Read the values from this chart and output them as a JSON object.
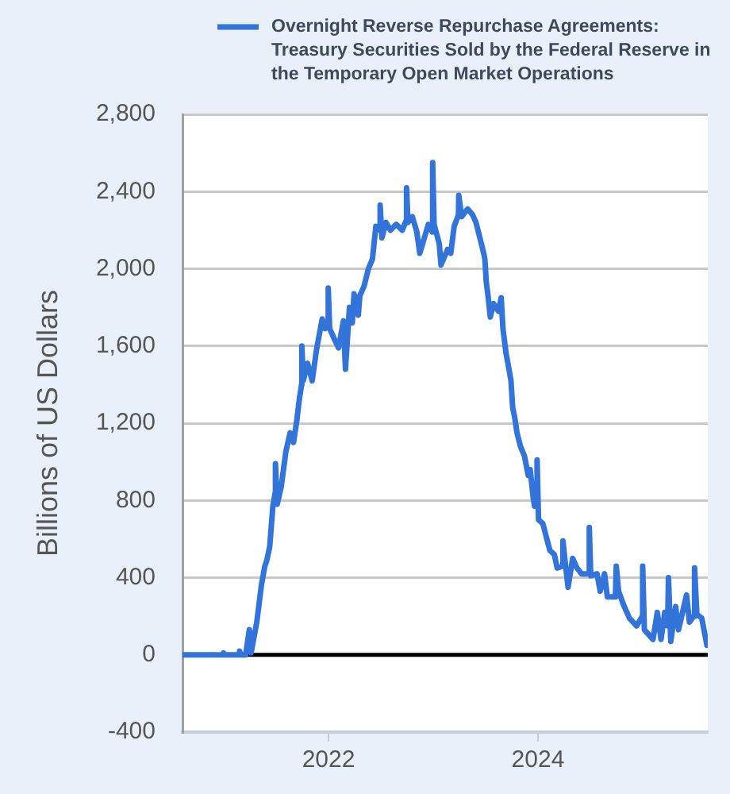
{
  "chart_data": {
    "type": "line",
    "ylabel": "Billions of US Dollars",
    "x": [
      "2020-08-10",
      "2020-10-15",
      "2020-12-30",
      "2020-12-31",
      "2021-01-04",
      "2021-02-24",
      "2021-02-25",
      "2021-03-01",
      "2021-03-18",
      "2021-03-31",
      "2021-04-06",
      "2021-04-26",
      "2021-05-12",
      "2021-05-24",
      "2021-05-31",
      "2021-06-10",
      "2021-06-21",
      "2021-06-29",
      "2021-06-30",
      "2021-07-06",
      "2021-07-20",
      "2021-08-05",
      "2021-08-20",
      "2021-09-01",
      "2021-09-13",
      "2021-09-20",
      "2021-09-29",
      "2021-09-30",
      "2021-10-05",
      "2021-10-20",
      "2021-11-05",
      "2021-11-20",
      "2021-12-10",
      "2021-12-20",
      "2021-12-30",
      "2021-12-31",
      "2022-01-05",
      "2022-01-20",
      "2022-02-05",
      "2022-02-22",
      "2022-03-01",
      "2022-03-15",
      "2022-03-25",
      "2022-03-31",
      "2022-04-15",
      "2022-04-20",
      "2022-05-05",
      "2022-05-20",
      "2022-06-03",
      "2022-06-15",
      "2022-06-29",
      "2022-06-30",
      "2022-07-06",
      "2022-07-20",
      "2022-08-05",
      "2022-08-25",
      "2022-09-15",
      "2022-09-29",
      "2022-09-30",
      "2022-10-05",
      "2022-10-20",
      "2022-11-05",
      "2022-11-15",
      "2022-11-25",
      "2022-12-15",
      "2022-12-29",
      "2022-12-30",
      "2023-01-04",
      "2023-01-22",
      "2023-01-28",
      "2023-02-20",
      "2023-03-03",
      "2023-03-15",
      "2023-03-30",
      "2023-03-31",
      "2023-04-10",
      "2023-05-01",
      "2023-05-18",
      "2023-05-30",
      "2023-06-16",
      "2023-06-26",
      "2023-06-30",
      "2023-07-05",
      "2023-07-11",
      "2023-07-19",
      "2023-07-30",
      "2023-08-16",
      "2023-08-26",
      "2023-09-01",
      "2023-09-12",
      "2023-09-22",
      "2023-09-29",
      "2023-10-05",
      "2023-10-12",
      "2023-10-20",
      "2023-11-01",
      "2023-11-15",
      "2023-11-28",
      "2023-12-05",
      "2023-12-15",
      "2023-12-20",
      "2023-12-28",
      "2023-12-29",
      "2024-01-03",
      "2024-01-18",
      "2024-02-01",
      "2024-02-12",
      "2024-02-27",
      "2024-03-08",
      "2024-03-27",
      "2024-03-28",
      "2024-04-05",
      "2024-04-15",
      "2024-05-01",
      "2024-05-16",
      "2024-06-01",
      "2024-06-27",
      "2024-06-28",
      "2024-07-03",
      "2024-07-25",
      "2024-08-05",
      "2024-08-20",
      "2024-08-30",
      "2024-09-27",
      "2024-09-30",
      "2024-10-08",
      "2024-10-25",
      "2024-11-15",
      "2024-12-10",
      "2024-12-30",
      "2024-12-31",
      "2025-01-06",
      "2025-02-05",
      "2025-02-20",
      "2025-03-05",
      "2025-03-18",
      "2025-03-28",
      "2025-03-31",
      "2025-04-08",
      "2025-04-25",
      "2025-05-05",
      "2025-06-02",
      "2025-06-12",
      "2025-06-27",
      "2025-06-30",
      "2025-07-08",
      "2025-07-25",
      "2025-08-12"
    ],
    "series": [
      {
        "name": "Overnight Reverse Repurchase Agreements: Treasury Securities Sold by the Federal Reserve in the Temporary Open Market Operations",
        "color": "#3274d9",
        "values": [
          0,
          0,
          0,
          10,
          0,
          0,
          20,
          0,
          0,
          130,
          10,
          170,
          360,
          460,
          490,
          560,
          770,
          840,
          990,
          780,
          870,
          1050,
          1150,
          1100,
          1220,
          1310,
          1400,
          1600,
          1420,
          1510,
          1420,
          1580,
          1740,
          1690,
          1700,
          1900,
          1690,
          1640,
          1590,
          1730,
          1480,
          1800,
          1720,
          1870,
          1760,
          1860,
          1910,
          2000,
          2050,
          2220,
          2200,
          2330,
          2160,
          2240,
          2200,
          2230,
          2200,
          2250,
          2420,
          2240,
          2270,
          2190,
          2080,
          2130,
          2230,
          2190,
          2550,
          2230,
          2130,
          2020,
          2100,
          2080,
          2220,
          2280,
          2380,
          2270,
          2310,
          2280,
          2240,
          2140,
          2080,
          2050,
          1930,
          1860,
          1750,
          1820,
          1780,
          1850,
          1690,
          1560,
          1480,
          1420,
          1280,
          1230,
          1150,
          1080,
          1030,
          930,
          960,
          820,
          770,
          800,
          1010,
          700,
          680,
          600,
          540,
          520,
          450,
          460,
          590,
          480,
          350,
          500,
          450,
          420,
          420,
          660,
          410,
          420,
          330,
          420,
          300,
          300,
          460,
          330,
          260,
          190,
          150,
          200,
          460,
          130,
          80,
          220,
          80,
          220,
          150,
          400,
          70,
          250,
          130,
          310,
          170,
          200,
          450,
          210,
          190,
          50
        ]
      }
    ],
    "xlim": [
      "2020-08-10",
      "2025-08-15"
    ],
    "xticks": [
      "2022",
      "2024"
    ],
    "ylim": [
      -400,
      2800
    ],
    "yticks": [
      -400,
      0,
      400,
      800,
      {
        "value": 1200,
        "label": "1,200"
      },
      {
        "value": 1600,
        "label": "1,600"
      },
      {
        "value": 2000,
        "label": "2,000"
      },
      {
        "value": 2400,
        "label": "2,400"
      },
      {
        "value": 2800,
        "label": "2,800"
      }
    ],
    "grid": "y",
    "legend": "top",
    "ref_lines": [
      {
        "axis": "y",
        "value": 0,
        "color": "#000000"
      }
    ]
  }
}
